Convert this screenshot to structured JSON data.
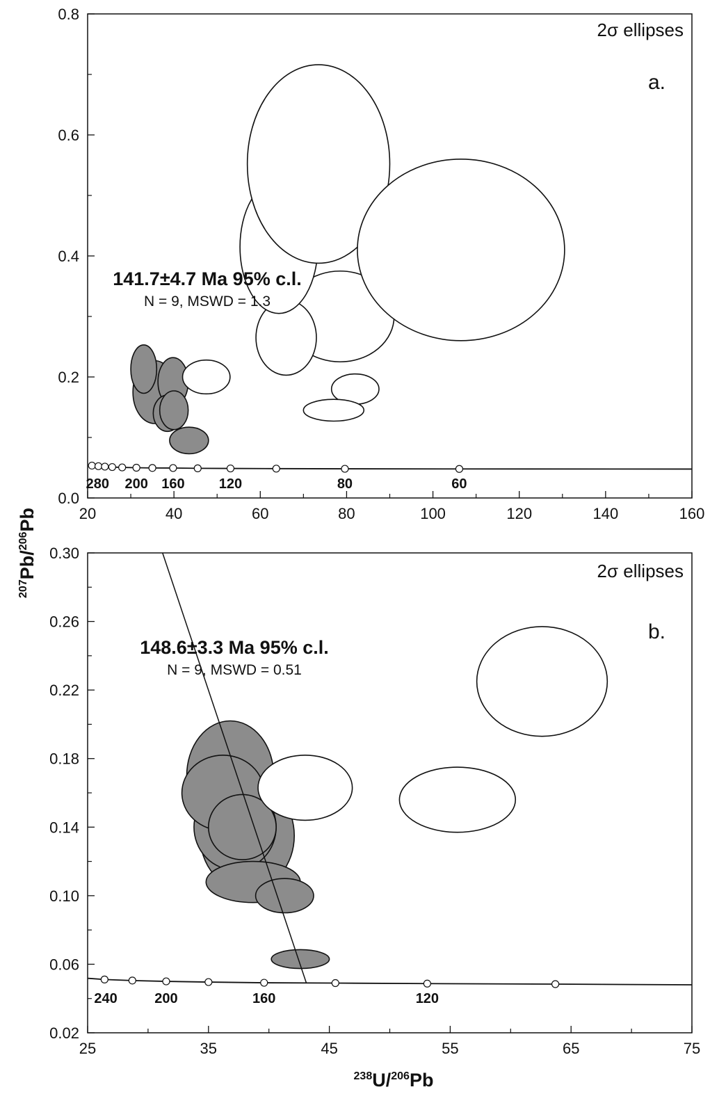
{
  "ylabel": {
    "sup1": "207",
    "main1": "Pb/",
    "sup2": "206",
    "main2": "Pb"
  },
  "xlabel": {
    "sup1": "238",
    "main1": "U/",
    "sup2": "206",
    "main2": "Pb"
  },
  "chart_data": [
    {
      "type": "scatter",
      "panel": "a.",
      "note": "2σ ellipses",
      "annotation": {
        "main": "141.7±4.7 Ma 95% c.l.",
        "sub": "N = 9, MSWD = 1.3"
      },
      "xlim": [
        20,
        160
      ],
      "ylim": [
        0.0,
        0.8
      ],
      "xticks": [
        20,
        40,
        60,
        80,
        100,
        120,
        140,
        160
      ],
      "yticks": [
        0.0,
        0.2,
        0.4,
        0.6,
        0.8
      ],
      "ytick_labels": [
        "0.0",
        "0.2",
        "0.4",
        "0.6",
        "0.8"
      ],
      "grid": false,
      "concordia": {
        "points": [
          {
            "x": 21.0,
            "y": 0.0535
          },
          {
            "x": 22.5,
            "y": 0.0525
          },
          {
            "x": 24.0,
            "y": 0.0518
          },
          {
            "x": 25.7,
            "y": 0.0511
          },
          {
            "x": 28.0,
            "y": 0.0505
          },
          {
            "x": 31.3,
            "y": 0.05
          },
          {
            "x": 35.0,
            "y": 0.0496
          },
          {
            "x": 39.8,
            "y": 0.0495
          },
          {
            "x": 45.5,
            "y": 0.049
          },
          {
            "x": 53.1,
            "y": 0.0488
          },
          {
            "x": 63.7,
            "y": 0.0485
          },
          {
            "x": 79.6,
            "y": 0.0482
          },
          {
            "x": 106.1,
            "y": 0.048
          }
        ],
        "line_end": {
          "x": 160,
          "y": 0.0478
        },
        "age_labels": [
          {
            "text": "280",
            "x": 22.3
          },
          {
            "text": "200",
            "x": 31.3
          },
          {
            "text": "160",
            "x": 39.8
          },
          {
            "text": "120",
            "x": 53.1
          },
          {
            "text": "80",
            "x": 79.6
          },
          {
            "text": "60",
            "x": 106.1
          }
        ]
      },
      "ellipses": [
        {
          "cx": 35.5,
          "cy": 0.175,
          "rx": 5.0,
          "ry": 0.052,
          "filled": true
        },
        {
          "cx": 39.8,
          "cy": 0.192,
          "rx": 3.5,
          "ry": 0.04,
          "filled": true
        },
        {
          "cx": 33.0,
          "cy": 0.213,
          "rx": 3.0,
          "ry": 0.04,
          "filled": true
        },
        {
          "cx": 38.5,
          "cy": 0.14,
          "rx": 3.3,
          "ry": 0.03,
          "filled": true
        },
        {
          "cx": 40.0,
          "cy": 0.145,
          "rx": 3.3,
          "ry": 0.032,
          "filled": true
        },
        {
          "cx": 43.5,
          "cy": 0.095,
          "rx": 4.5,
          "ry": 0.022,
          "filled": true
        },
        {
          "cx": 47.5,
          "cy": 0.2,
          "rx": 5.5,
          "ry": 0.028,
          "filled": false
        },
        {
          "cx": 78.5,
          "cy": 0.3,
          "rx": 12.5,
          "ry": 0.075,
          "filled": false
        },
        {
          "cx": 66.0,
          "cy": 0.265,
          "rx": 7.0,
          "ry": 0.062,
          "filled": false
        },
        {
          "cx": 64.3,
          "cy": 0.415,
          "rx": 9.0,
          "ry": 0.11,
          "filled": false
        },
        {
          "cx": 73.5,
          "cy": 0.552,
          "rx": 16.5,
          "ry": 0.164,
          "filled": false
        },
        {
          "cx": 106.5,
          "cy": 0.41,
          "rx": 24.0,
          "ry": 0.15,
          "filled": false
        },
        {
          "cx": 82.0,
          "cy": 0.18,
          "rx": 5.5,
          "ry": 0.025,
          "filled": false
        },
        {
          "cx": 77.0,
          "cy": 0.145,
          "rx": 7.0,
          "ry": 0.018,
          "filled": false
        }
      ]
    },
    {
      "type": "scatter",
      "panel": "b.",
      "note": "2σ ellipses",
      "annotation": {
        "main": "148.6±3.3 Ma 95% c.l.",
        "sub": "N = 9, MSWD = 0.51"
      },
      "xlim": [
        25,
        75
      ],
      "ylim": [
        0.02,
        0.3
      ],
      "xticks": [
        25,
        35,
        45,
        55,
        65,
        75
      ],
      "yticks": [
        0.02,
        0.06,
        0.1,
        0.14,
        0.18,
        0.22,
        0.26,
        0.3
      ],
      "ytick_labels": [
        "0.02",
        "0.06",
        "0.10",
        "0.14",
        "0.18",
        "0.22",
        "0.26",
        "0.30"
      ],
      "grid": false,
      "regression_line": [
        {
          "x": 31.2,
          "y": 0.3
        },
        {
          "x": 43.1,
          "y": 0.049
        }
      ],
      "concordia": {
        "points": [
          {
            "x": 26.4,
            "y": 0.0511
          },
          {
            "x": 28.7,
            "y": 0.0505
          },
          {
            "x": 31.5,
            "y": 0.05
          },
          {
            "x": 35.0,
            "y": 0.0496
          },
          {
            "x": 39.6,
            "y": 0.0492
          },
          {
            "x": 45.5,
            "y": 0.049
          },
          {
            "x": 53.1,
            "y": 0.0487
          },
          {
            "x": 63.7,
            "y": 0.0484
          }
        ],
        "line_start": {
          "x": 25,
          "y": 0.0518
        },
        "line_end": {
          "x": 75,
          "y": 0.048
        },
        "age_labels": [
          {
            "text": "240",
            "x": 26.5
          },
          {
            "text": "200",
            "x": 31.5
          },
          {
            "text": "160",
            "x": 39.6
          },
          {
            "text": "120",
            "x": 53.1
          }
        ]
      },
      "ellipses": [
        {
          "cx": 36.8,
          "cy": 0.17,
          "rx": 3.6,
          "ry": 0.032,
          "filled": true
        },
        {
          "cx": 38.2,
          "cy": 0.135,
          "rx": 3.9,
          "ry": 0.032,
          "filled": true
        },
        {
          "cx": 37.2,
          "cy": 0.14,
          "rx": 3.4,
          "ry": 0.025,
          "filled": true
        },
        {
          "cx": 36.2,
          "cy": 0.16,
          "rx": 3.4,
          "ry": 0.022,
          "filled": true
        },
        {
          "cx": 37.8,
          "cy": 0.14,
          "rx": 2.8,
          "ry": 0.019,
          "filled": true
        },
        {
          "cx": 38.7,
          "cy": 0.108,
          "rx": 3.9,
          "ry": 0.012,
          "filled": true
        },
        {
          "cx": 41.3,
          "cy": 0.1,
          "rx": 2.4,
          "ry": 0.01,
          "filled": true
        },
        {
          "cx": 42.6,
          "cy": 0.063,
          "rx": 2.4,
          "ry": 0.0055,
          "filled": true
        },
        {
          "cx": 43.0,
          "cy": 0.163,
          "rx": 3.9,
          "ry": 0.019,
          "filled": false
        },
        {
          "cx": 55.6,
          "cy": 0.156,
          "rx": 4.8,
          "ry": 0.019,
          "filled": false
        },
        {
          "cx": 62.6,
          "cy": 0.225,
          "rx": 5.4,
          "ry": 0.032,
          "filled": false
        }
      ]
    }
  ]
}
